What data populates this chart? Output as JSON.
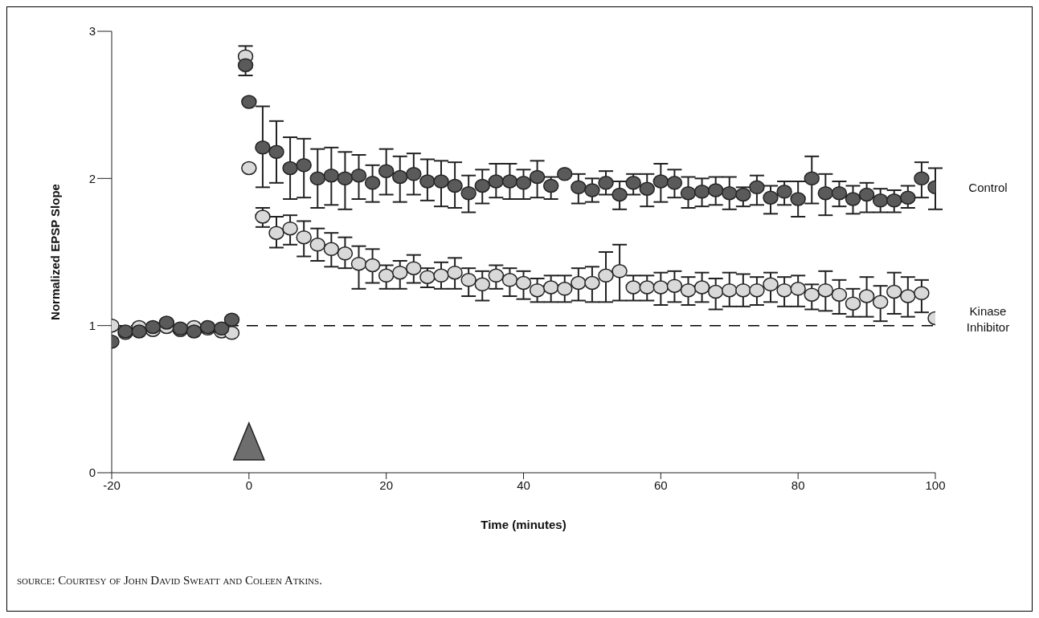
{
  "chart_data": {
    "type": "scatter",
    "xlabel": "Time (minutes)",
    "ylabel": "Normalized EPSP Slope",
    "xlim": [
      -20,
      100
    ],
    "xticks": [
      -20,
      0,
      20,
      40,
      60,
      80,
      100
    ],
    "ylim": [
      0,
      3
    ],
    "yticks": [
      0,
      1,
      2,
      3
    ],
    "grid": false,
    "legend": false,
    "marker": "circle",
    "ref_lines": [
      {
        "axis": "y",
        "value": 1,
        "color": "#000000",
        "line_style": "dashed"
      }
    ],
    "annotations": [
      "source: Courtesy of John David Sweatt and Coleen Atkins."
    ],
    "series": [
      {
        "name": "Control",
        "color": "#5a5a5a",
        "x": [
          -20,
          -18,
          -16,
          -14,
          -12,
          -10,
          -8,
          -6,
          -4,
          -2.5,
          -0.5,
          0,
          2,
          4,
          6,
          8,
          10,
          12,
          14,
          16,
          18,
          20,
          22,
          24,
          26,
          28,
          30,
          32,
          34,
          36,
          38,
          40,
          42,
          44,
          46,
          48,
          50,
          52,
          54,
          56,
          58,
          60,
          62,
          64,
          66,
          68,
          70,
          72,
          74,
          76,
          78,
          80,
          82,
          84,
          86,
          88,
          90,
          92,
          94,
          96,
          98,
          100
        ],
        "values": [
          0.89,
          0.96,
          0.96,
          0.99,
          1.02,
          0.98,
          0.96,
          0.99,
          0.98,
          1.04,
          2.77,
          2.52,
          2.21,
          2.18,
          2.07,
          2.09,
          2.0,
          2.02,
          2.0,
          2.02,
          1.97,
          2.05,
          2.01,
          2.03,
          1.98,
          1.98,
          1.95,
          1.9,
          1.95,
          1.98,
          1.98,
          1.97,
          2.01,
          1.95,
          2.03,
          1.94,
          1.92,
          1.97,
          1.89,
          1.97,
          1.93,
          1.98,
          1.97,
          1.9,
          1.91,
          1.92,
          1.9,
          1.89,
          1.94,
          1.87,
          1.91,
          1.86,
          2.0,
          1.9,
          1.9,
          1.86,
          1.89,
          1.85,
          1.85,
          1.87,
          2.0,
          1.94
        ],
        "errors": [
          null,
          null,
          null,
          null,
          null,
          null,
          null,
          null,
          null,
          null,
          [
            2.7,
            2.77
          ],
          null,
          [
            1.94,
            2.49
          ],
          [
            1.97,
            2.39
          ],
          [
            1.86,
            2.28
          ],
          [
            1.87,
            2.27
          ],
          [
            1.8,
            2.2
          ],
          [
            1.82,
            2.21
          ],
          [
            1.79,
            2.18
          ],
          [
            1.86,
            2.16
          ],
          [
            1.84,
            2.09
          ],
          [
            1.89,
            2.2
          ],
          [
            1.84,
            2.15
          ],
          [
            1.89,
            2.17
          ],
          [
            1.85,
            2.13
          ],
          [
            1.81,
            2.12
          ],
          [
            1.8,
            2.11
          ],
          [
            1.77,
            2.02
          ],
          [
            1.83,
            2.06
          ],
          [
            1.87,
            2.1
          ],
          [
            1.86,
            2.1
          ],
          [
            1.86,
            2.06
          ],
          [
            1.87,
            2.12
          ],
          [
            1.86,
            2.01
          ],
          null,
          [
            1.83,
            2.03
          ],
          [
            1.84,
            2.0
          ],
          [
            1.89,
            2.05
          ],
          [
            1.79,
            1.98
          ],
          [
            1.89,
            2.03
          ],
          [
            1.81,
            2.03
          ],
          [
            1.84,
            2.1
          ],
          [
            1.87,
            2.06
          ],
          [
            1.8,
            2.01
          ],
          [
            1.81,
            2.0
          ],
          [
            1.82,
            2.01
          ],
          [
            1.79,
            2.01
          ],
          [
            1.81,
            1.94
          ],
          [
            1.82,
            2.02
          ],
          [
            1.76,
            1.95
          ],
          [
            1.82,
            1.98
          ],
          [
            1.74,
            1.98
          ],
          [
            1.83,
            2.15
          ],
          [
            1.75,
            2.03
          ],
          [
            1.81,
            1.98
          ],
          [
            1.76,
            1.95
          ],
          [
            1.77,
            1.97
          ],
          [
            1.77,
            1.93
          ],
          [
            1.77,
            1.92
          ],
          [
            1.8,
            1.95
          ],
          [
            1.87,
            2.11
          ],
          [
            1.79,
            2.07
          ]
        ]
      },
      {
        "name": "Kinase Inhibitor",
        "color": "#d9d9d9",
        "x": [
          -20,
          -18,
          -16,
          -14,
          -12,
          -10,
          -8,
          -6,
          -4,
          -2.5,
          -0.5,
          0,
          2,
          4,
          6,
          8,
          10,
          12,
          14,
          16,
          18,
          20,
          22,
          24,
          26,
          28,
          30,
          32,
          34,
          36,
          38,
          40,
          42,
          44,
          46,
          48,
          50,
          52,
          54,
          56,
          58,
          60,
          62,
          64,
          66,
          68,
          70,
          72,
          74,
          76,
          78,
          80,
          82,
          84,
          86,
          88,
          90,
          92,
          94,
          96,
          98,
          100
        ],
        "values": [
          1.0,
          0.95,
          0.99,
          0.97,
          0.99,
          0.97,
          0.99,
          0.98,
          0.96,
          0.95,
          2.83,
          2.07,
          1.74,
          1.63,
          1.66,
          1.6,
          1.55,
          1.52,
          1.49,
          1.42,
          1.41,
          1.34,
          1.36,
          1.39,
          1.33,
          1.34,
          1.36,
          1.31,
          1.28,
          1.34,
          1.31,
          1.29,
          1.24,
          1.26,
          1.25,
          1.29,
          1.29,
          1.34,
          1.37,
          1.26,
          1.26,
          1.26,
          1.27,
          1.24,
          1.26,
          1.23,
          1.24,
          1.24,
          1.24,
          1.28,
          1.24,
          1.25,
          1.21,
          1.24,
          1.21,
          1.15,
          1.2,
          1.16,
          1.23,
          1.2,
          1.22,
          1.05
        ],
        "errors": [
          null,
          null,
          null,
          null,
          null,
          null,
          null,
          null,
          null,
          null,
          [
            2.83,
            2.9
          ],
          null,
          [
            1.67,
            1.8
          ],
          [
            1.53,
            1.74
          ],
          [
            1.55,
            1.75
          ],
          [
            1.47,
            1.71
          ],
          [
            1.44,
            1.66
          ],
          [
            1.4,
            1.63
          ],
          [
            1.39,
            1.6
          ],
          [
            1.25,
            1.54
          ],
          [
            1.29,
            1.52
          ],
          [
            1.25,
            1.41
          ],
          [
            1.25,
            1.44
          ],
          [
            1.29,
            1.48
          ],
          [
            1.26,
            1.39
          ],
          [
            1.25,
            1.43
          ],
          [
            1.25,
            1.46
          ],
          [
            1.2,
            1.39
          ],
          [
            1.17,
            1.37
          ],
          [
            1.25,
            1.41
          ],
          [
            1.2,
            1.39
          ],
          [
            1.18,
            1.37
          ],
          [
            1.16,
            1.32
          ],
          [
            1.16,
            1.34
          ],
          [
            1.16,
            1.34
          ],
          [
            1.17,
            1.39
          ],
          [
            1.16,
            1.4
          ],
          [
            1.16,
            1.5
          ],
          [
            1.17,
            1.55
          ],
          [
            1.17,
            1.34
          ],
          [
            1.17,
            1.34
          ],
          [
            1.14,
            1.36
          ],
          [
            1.16,
            1.37
          ],
          [
            1.14,
            1.33
          ],
          [
            1.16,
            1.36
          ],
          [
            1.11,
            1.32
          ],
          [
            1.13,
            1.36
          ],
          [
            1.13,
            1.35
          ],
          [
            1.14,
            1.33
          ],
          [
            1.16,
            1.36
          ],
          [
            1.13,
            1.33
          ],
          [
            1.13,
            1.34
          ],
          [
            1.11,
            1.28
          ],
          [
            1.1,
            1.37
          ],
          [
            1.08,
            1.31
          ],
          [
            1.06,
            1.25
          ],
          [
            1.06,
            1.33
          ],
          [
            1.03,
            1.27
          ],
          [
            1.08,
            1.36
          ],
          [
            1.06,
            1.33
          ],
          [
            1.09,
            1.31
          ],
          null
        ]
      }
    ]
  }
}
